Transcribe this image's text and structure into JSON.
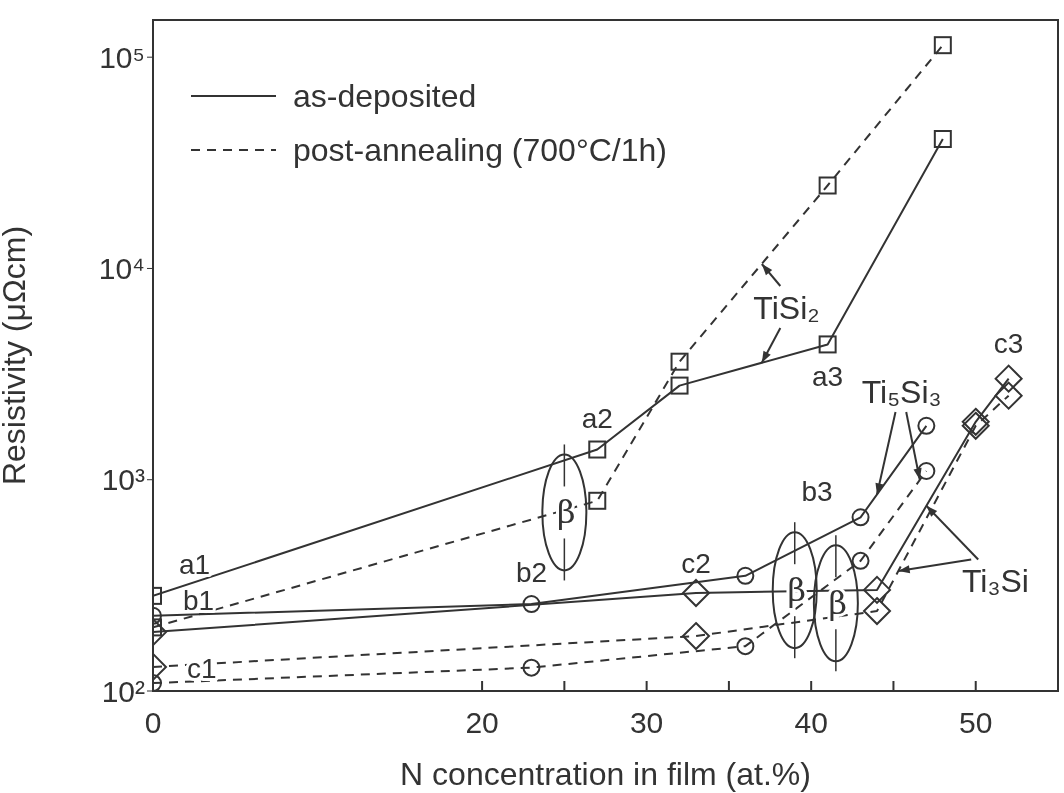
{
  "chart_data": {
    "type": "line",
    "xlabel": "N concentration in film (at.%)",
    "ylabel": "Resistivity (μΩcm)",
    "log": "y",
    "xlim": [
      0,
      55
    ],
    "xticks": [
      0,
      20,
      {
        "value": 25,
        "label": null
      },
      30,
      {
        "value": 35,
        "label": null
      },
      40,
      {
        "value": 45,
        "label": null
      },
      50
    ],
    "ylim": [
      100,
      150000
    ],
    "yticks": [
      {
        "value": 100,
        "label": "10²"
      },
      {
        "value": 1000,
        "label": "10³"
      },
      {
        "value": 10000,
        "label": "10⁴"
      },
      {
        "value": 100000,
        "label": "10⁵"
      }
    ],
    "legend": "top left",
    "grid": false,
    "series": [
      {
        "name": "as-deposited",
        "color": "#333333",
        "line_style": "solid",
        "marker": "square",
        "x": [
          0,
          27,
          32,
          41,
          48
        ],
        "values": [
          282,
          1390,
          2790,
          4370,
          41000
        ]
      },
      {
        "name": "post-annealing (700°C/1h)",
        "color": "#333333",
        "line_style": "dashed",
        "marker": "square",
        "x": [
          0,
          27,
          32,
          41,
          48
        ],
        "values": [
          200,
          795,
          3620,
          24700,
          114000
        ]
      },
      {
        "color": "#333333",
        "line_style": "solid",
        "marker": "circle",
        "x": [
          0,
          23,
          36,
          43,
          47
        ],
        "values": [
          227,
          258,
          351,
          664,
          1800
        ]
      },
      {
        "color": "#333333",
        "line_style": "dashed",
        "marker": "circle",
        "x": [
          0,
          23,
          36,
          43,
          47
        ],
        "values": [
          109,
          129,
          163,
          413,
          1100
        ]
      },
      {
        "color": "#333333",
        "line_style": "solid",
        "marker": "diamond",
        "x": [
          0,
          33,
          44,
          50,
          52
        ],
        "values": [
          190,
          291,
          301,
          1880,
          3010
        ]
      },
      {
        "color": "#333333",
        "line_style": "dashed",
        "marker": "diamond",
        "x": [
          0,
          33,
          44,
          50,
          52
        ],
        "values": [
          130,
          182,
          239,
          1800,
          2500
        ]
      }
    ],
    "annotations": [
      {
        "text": "a1",
        "x": 0,
        "y": 282
      },
      {
        "text": "b1",
        "x": 0,
        "y": 227
      },
      {
        "text": "c1",
        "x": 0,
        "y": 190
      },
      {
        "text": "a2",
        "x": 27,
        "y": 1390
      },
      {
        "text": "b2",
        "x": 23,
        "y": 258
      },
      {
        "text": "c2",
        "x": 33,
        "y": 291
      },
      {
        "text": "a3",
        "x": 41,
        "y": 4370
      },
      {
        "text": "b3",
        "x": 43,
        "y": 664
      },
      {
        "text": "c3",
        "x": 52,
        "y": 3010
      },
      "β",
      "β",
      "β",
      {
        "text": "TiSi₂",
        "x": 37,
        "y": 10500
      },
      {
        "text": "Ti₅Si₃",
        "x": 44,
        "y": 851
      },
      {
        "text": "Ti₃Si",
        "x": 47,
        "y": 753
      }
    ]
  }
}
